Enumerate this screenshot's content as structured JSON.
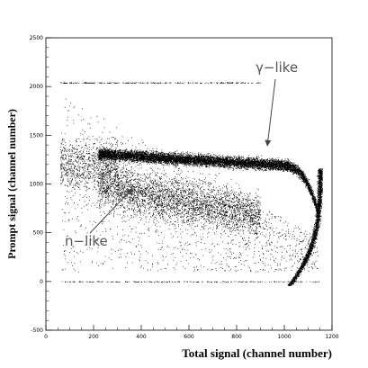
{
  "chart_data": {
    "type": "scatter",
    "title": "",
    "xlabel": "Total signal (channel number)",
    "ylabel": "Prompt signal (channel number)",
    "xlim": [
      0,
      1200
    ],
    "ylim": [
      -500,
      2500
    ],
    "xticks": [
      0,
      200,
      400,
      600,
      800,
      1000,
      1200
    ],
    "yticks": [
      -500,
      0,
      500,
      1000,
      1500,
      2000,
      2500
    ],
    "xtick_labels": [
      "0",
      "200",
      "400",
      "600",
      "800",
      "1000",
      "1200"
    ],
    "ytick_labels": [
      "-500",
      "0",
      "500",
      "1000",
      "1500",
      "2000",
      "2500"
    ],
    "grid": false,
    "legend": "none",
    "annotations": [
      {
        "text": "γ−like",
        "points_to": [
          925,
          1450
        ]
      },
      {
        "text": "n−like",
        "points_to": [
          370,
          980
        ]
      }
    ],
    "populations": [
      {
        "name": "gamma band",
        "x_range": [
          220,
          1160
        ],
        "y_center_at_start": 1310,
        "y_center_at_end": 1170,
        "y_halfwidth": 55,
        "color": "#000000"
      },
      {
        "name": "neutron band",
        "x_range": [
          100,
          900
        ],
        "y_center_at_start": 1050,
        "y_center_at_end": 680,
        "y_halfwidth": 230,
        "color": "#000000"
      },
      {
        "name": "saturation line",
        "x_range": [
          60,
          900
        ],
        "y": 2040
      },
      {
        "name": "zero line",
        "x_range": [
          60,
          1150
        ],
        "y": 0
      }
    ]
  }
}
